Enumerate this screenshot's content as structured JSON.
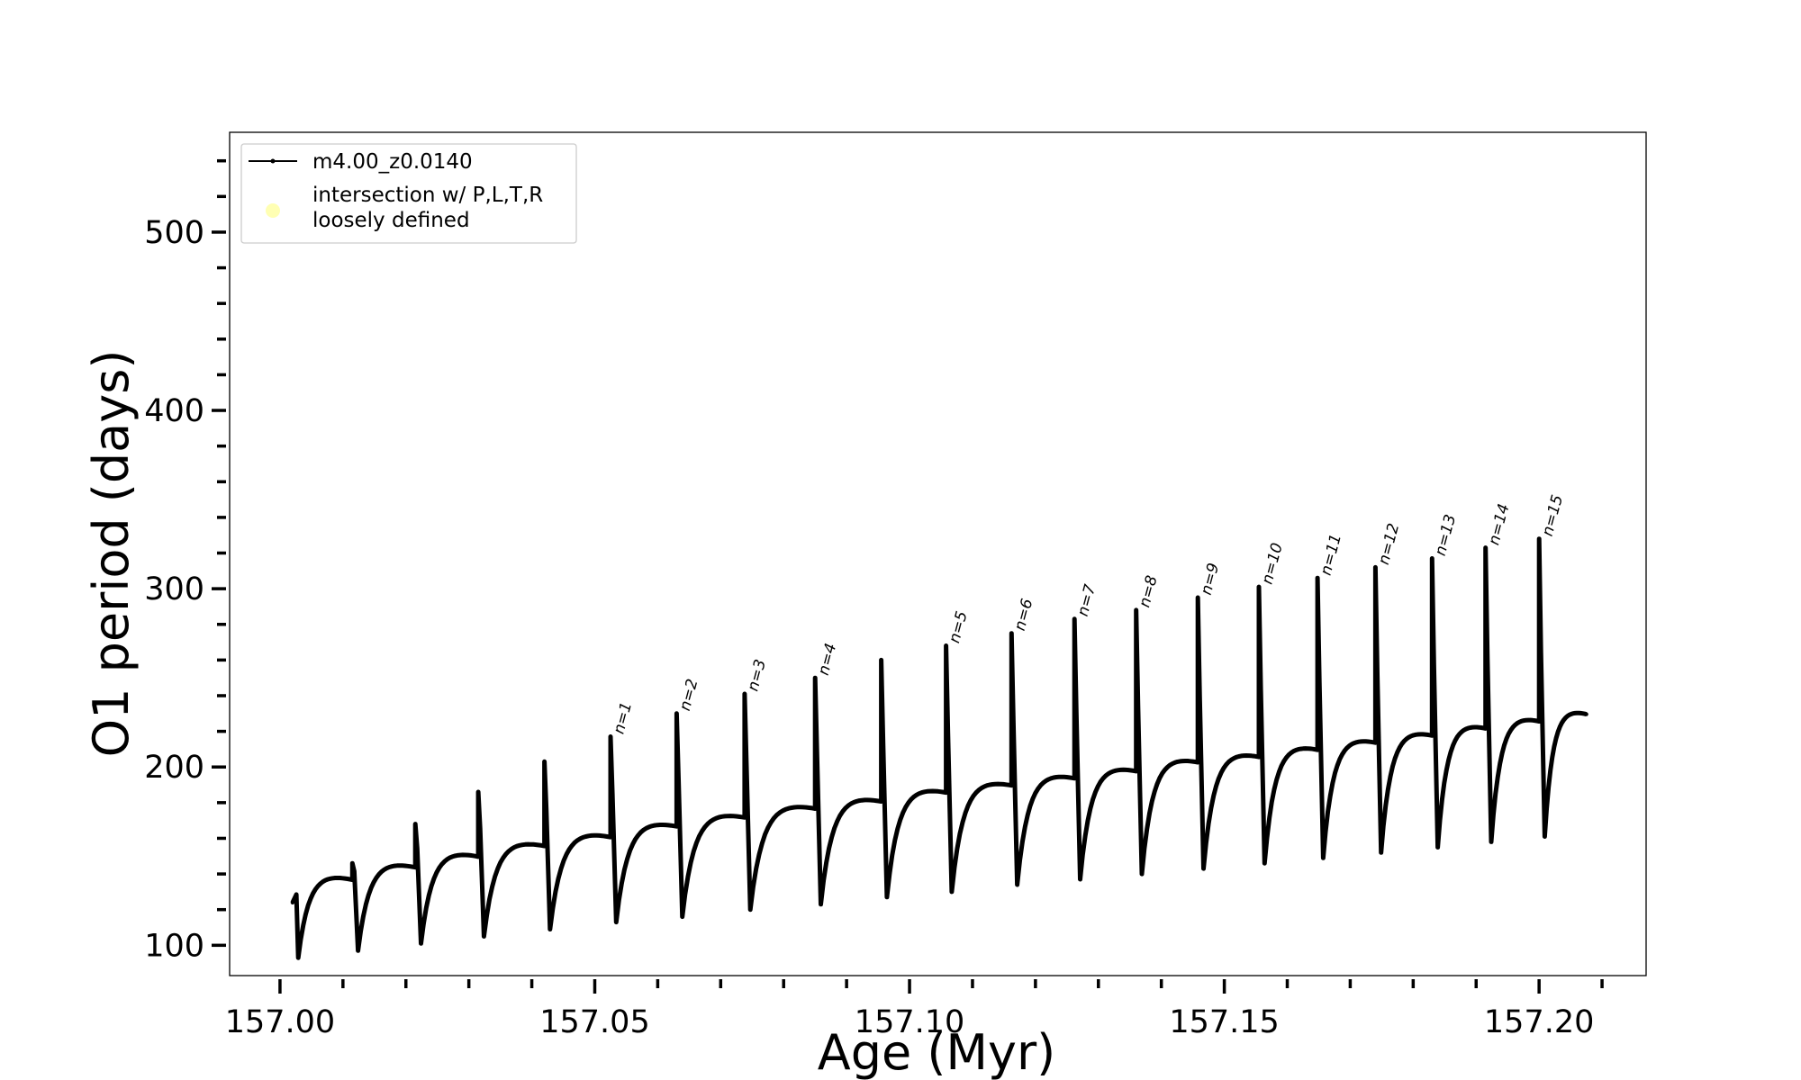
{
  "chart_data": {
    "type": "line",
    "xlabel": "Age (Myr)",
    "ylabel": "O1 period (days)",
    "xlim": [
      156.992,
      157.217
    ],
    "ylim": [
      83,
      556
    ],
    "x_ticks": [
      "157.00",
      "157.05",
      "157.10",
      "157.15",
      "157.20"
    ],
    "y_ticks": [
      "100",
      "200",
      "300",
      "400",
      "500"
    ],
    "legend": {
      "position": "top-left",
      "entries": [
        {
          "label": "m4.00_z0.0140",
          "marker": "line-with-dots",
          "color": "#000000"
        },
        {
          "label_lines": [
            "intersection w/ P,L,T,R",
            "loosely defined"
          ],
          "marker": "circle",
          "color": "#ffffb3"
        }
      ]
    },
    "series": [
      {
        "name": "m4.00_z0.0140",
        "color": "#000000",
        "start": {
          "age": 157.002,
          "period": 124
        },
        "end": {
          "age": 157.2075,
          "period": 234
        },
        "cycles": [
          {
            "age": 157.002,
            "peak": 124,
            "trough": 93,
            "plateau": 141
          },
          {
            "age": 157.0115,
            "peak": 146,
            "trough": 97,
            "plateau": 148
          },
          {
            "age": 157.0215,
            "peak": 168,
            "trough": 101,
            "plateau": 154
          },
          {
            "age": 157.0315,
            "peak": 186,
            "trough": 105,
            "plateau": 160
          },
          {
            "age": 157.042,
            "peak": 203,
            "trough": 109,
            "plateau": 165
          },
          {
            "age": 157.0525,
            "peak": 217,
            "trough": 113,
            "plateau": 171
          },
          {
            "age": 157.063,
            "peak": 230,
            "trough": 116,
            "plateau": 176
          },
          {
            "age": 157.0738,
            "peak": 241,
            "trough": 120,
            "plateau": 181
          },
          {
            "age": 157.085,
            "peak": 250,
            "trough": 123,
            "plateau": 185
          },
          {
            "age": 157.0955,
            "peak": 260,
            "trough": 127,
            "plateau": 190
          },
          {
            "age": 157.1058,
            "peak": 268,
            "trough": 130,
            "plateau": 194
          },
          {
            "age": 157.1162,
            "peak": 275,
            "trough": 134,
            "plateau": 198
          },
          {
            "age": 157.1262,
            "peak": 283,
            "trough": 137,
            "plateau": 202
          },
          {
            "age": 157.136,
            "peak": 288,
            "trough": 140,
            "plateau": 207
          },
          {
            "age": 157.1458,
            "peak": 295,
            "trough": 143,
            "plateau": 210
          },
          {
            "age": 157.1555,
            "peak": 301,
            "trough": 146,
            "plateau": 214
          },
          {
            "age": 157.1648,
            "peak": 306,
            "trough": 149,
            "plateau": 218
          },
          {
            "age": 157.174,
            "peak": 312,
            "trough": 152,
            "plateau": 222
          },
          {
            "age": 157.183,
            "peak": 317,
            "trough": 155,
            "plateau": 226
          },
          {
            "age": 157.1915,
            "peak": 323,
            "trough": 158,
            "plateau": 230
          },
          {
            "age": 157.2,
            "peak": 328,
            "trough": 161,
            "plateau": 234
          }
        ]
      }
    ],
    "annotations": [
      {
        "text": "n=1",
        "age": 157.0525,
        "period": 217
      },
      {
        "text": "n=2",
        "age": 157.063,
        "period": 230
      },
      {
        "text": "n=3",
        "age": 157.0738,
        "period": 241
      },
      {
        "text": "n=4",
        "age": 157.085,
        "period": 250
      },
      {
        "text": "n=5",
        "age": 157.1058,
        "period": 268
      },
      {
        "text": "n=6",
        "age": 157.1162,
        "period": 275
      },
      {
        "text": "n=7",
        "age": 157.1262,
        "period": 283
      },
      {
        "text": "n=8",
        "age": 157.136,
        "period": 288
      },
      {
        "text": "n=9",
        "age": 157.1458,
        "period": 295
      },
      {
        "text": "n=10",
        "age": 157.1555,
        "period": 301
      },
      {
        "text": "n=11",
        "age": 157.1648,
        "period": 306
      },
      {
        "text": "n=12",
        "age": 157.174,
        "period": 312
      },
      {
        "text": "n=13",
        "age": 157.183,
        "period": 317
      },
      {
        "text": "n=14",
        "age": 157.1915,
        "period": 323
      },
      {
        "text": "n=15",
        "age": 157.2,
        "period": 328
      }
    ]
  }
}
